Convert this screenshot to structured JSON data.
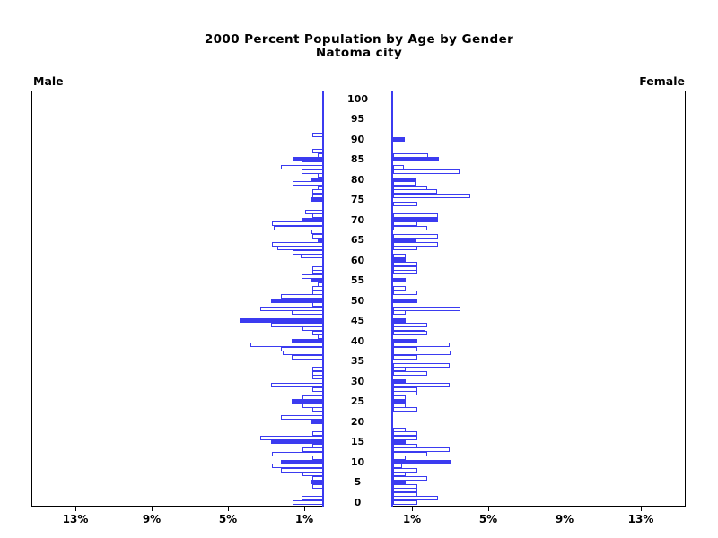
{
  "title": {
    "line1": "2000 Percent Population by Age by Gender",
    "line2": "Natoma city"
  },
  "panel_labels": {
    "male": "Male",
    "female": "Female"
  },
  "colors": {
    "bar_blue": "#3b3bf0",
    "axis_black": "#000000",
    "background": "#ffffff"
  },
  "chart_data": {
    "type": "bar",
    "variant": "population-pyramid",
    "title": "2000 Percent Population by Age by Gender",
    "subtitle": "Natoma city",
    "x_axis": {
      "unit": "percent",
      "per_side_max": 15.3,
      "ticks": [
        {
          "value": 1,
          "label": "1%"
        },
        {
          "value": 5,
          "label": "5%"
        },
        {
          "value": 9,
          "label": "9%"
        },
        {
          "value": 13,
          "label": "13%"
        }
      ]
    },
    "y_axis": {
      "unit": "age_years",
      "min": 0,
      "max": 100,
      "tick_step": 5,
      "tick_labels": [
        "0",
        "5",
        "10",
        "15",
        "20",
        "25",
        "30",
        "35",
        "40",
        "45",
        "50",
        "55",
        "60",
        "65",
        "70",
        "75",
        "80",
        "85",
        "90",
        "95",
        "100"
      ]
    },
    "bar_style_note": "filled bars mark ages divisible by 5; outlined bars are other single years of age",
    "series": [
      {
        "name": "Male",
        "side": "left",
        "bars": [
          [
            0,
            1.6,
            0
          ],
          [
            1,
            1.15,
            0
          ],
          [
            4,
            0.55,
            0
          ],
          [
            5,
            0.6,
            1
          ],
          [
            6,
            0.55,
            0
          ],
          [
            7,
            1.1,
            0
          ],
          [
            8,
            2.2,
            0
          ],
          [
            9,
            2.7,
            0
          ],
          [
            10,
            2.2,
            1
          ],
          [
            11,
            0.55,
            0
          ],
          [
            12,
            2.7,
            0
          ],
          [
            13,
            1.1,
            0
          ],
          [
            14,
            0.55,
            0
          ],
          [
            15,
            2.75,
            1
          ],
          [
            16,
            3.3,
            0
          ],
          [
            17,
            0.55,
            0
          ],
          [
            20,
            0.6,
            1
          ],
          [
            21,
            2.2,
            0
          ],
          [
            23,
            0.55,
            0
          ],
          [
            24,
            1.1,
            0
          ],
          [
            25,
            1.65,
            1
          ],
          [
            26,
            1.1,
            0
          ],
          [
            28,
            0.55,
            0
          ],
          [
            29,
            2.75,
            0
          ],
          [
            31,
            0.55,
            0
          ],
          [
            32,
            0.55,
            0
          ],
          [
            33,
            0.55,
            0
          ],
          [
            36,
            1.65,
            0
          ],
          [
            37,
            2.1,
            0
          ],
          [
            38,
            2.2,
            0
          ],
          [
            39,
            3.8,
            0
          ],
          [
            40,
            1.65,
            1
          ],
          [
            41,
            0.3,
            0
          ],
          [
            42,
            0.55,
            0
          ],
          [
            43,
            1.1,
            0
          ],
          [
            44,
            2.75,
            0
          ],
          [
            45,
            4.4,
            1
          ],
          [
            47,
            1.65,
            0
          ],
          [
            48,
            3.3,
            0
          ],
          [
            49,
            0.55,
            0
          ],
          [
            50,
            2.75,
            1
          ],
          [
            51,
            2.2,
            0
          ],
          [
            52,
            0.55,
            0
          ],
          [
            53,
            0.55,
            0
          ],
          [
            54,
            0.3,
            0
          ],
          [
            55,
            0.6,
            1
          ],
          [
            56,
            1.15,
            0
          ],
          [
            57,
            0.55,
            0
          ],
          [
            58,
            0.55,
            0
          ],
          [
            61,
            1.2,
            0
          ],
          [
            62,
            1.6,
            0
          ],
          [
            63,
            2.4,
            0
          ],
          [
            64,
            2.7,
            0
          ],
          [
            65,
            0.3,
            1
          ],
          [
            66,
            0.55,
            0
          ],
          [
            67,
            0.6,
            0
          ],
          [
            68,
            2.6,
            0
          ],
          [
            69,
            2.7,
            0
          ],
          [
            70,
            1.1,
            1
          ],
          [
            71,
            0.55,
            0
          ],
          [
            72,
            0.95,
            0
          ],
          [
            75,
            0.6,
            1
          ],
          [
            76,
            0.55,
            0
          ],
          [
            77,
            0.55,
            0
          ],
          [
            78,
            0.3,
            0
          ],
          [
            79,
            1.6,
            0
          ],
          [
            80,
            0.6,
            1
          ],
          [
            81,
            0.3,
            0
          ],
          [
            82,
            1.15,
            0
          ],
          [
            83,
            2.2,
            0
          ],
          [
            84,
            1.15,
            0
          ],
          [
            85,
            1.6,
            1
          ],
          [
            86,
            0.3,
            0
          ],
          [
            87,
            0.55,
            0
          ],
          [
            91,
            0.55,
            0
          ]
        ]
      },
      {
        "name": "Female",
        "side": "right",
        "bars": [
          [
            0,
            1.25,
            0
          ],
          [
            1,
            2.35,
            0
          ],
          [
            2,
            1.25,
            0
          ],
          [
            3,
            1.25,
            0
          ],
          [
            4,
            1.25,
            0
          ],
          [
            5,
            0.68,
            1
          ],
          [
            6,
            1.8,
            0
          ],
          [
            7,
            0.68,
            0
          ],
          [
            8,
            1.25,
            0
          ],
          [
            9,
            0.45,
            0
          ],
          [
            10,
            3.0,
            1
          ],
          [
            11,
            0.68,
            0
          ],
          [
            12,
            1.8,
            0
          ],
          [
            13,
            2.95,
            0
          ],
          [
            14,
            1.25,
            0
          ],
          [
            15,
            0.68,
            1
          ],
          [
            16,
            1.25,
            0
          ],
          [
            17,
            1.25,
            0
          ],
          [
            18,
            0.68,
            0
          ],
          [
            23,
            1.25,
            0
          ],
          [
            24,
            0.68,
            0
          ],
          [
            25,
            0.65,
            1
          ],
          [
            26,
            0.68,
            0
          ],
          [
            27,
            1.25,
            0
          ],
          [
            28,
            1.25,
            0
          ],
          [
            29,
            2.95,
            0
          ],
          [
            30,
            0.68,
            1
          ],
          [
            32,
            1.8,
            0
          ],
          [
            33,
            0.65,
            0
          ],
          [
            34,
            2.95,
            0
          ],
          [
            36,
            1.25,
            0
          ],
          [
            37,
            3.0,
            0
          ],
          [
            38,
            1.25,
            0
          ],
          [
            39,
            2.95,
            0
          ],
          [
            40,
            1.25,
            1
          ],
          [
            42,
            1.8,
            0
          ],
          [
            43,
            1.7,
            0
          ],
          [
            44,
            1.8,
            0
          ],
          [
            45,
            0.65,
            1
          ],
          [
            47,
            0.65,
            0
          ],
          [
            48,
            3.55,
            0
          ],
          [
            50,
            1.25,
            1
          ],
          [
            52,
            1.25,
            0
          ],
          [
            53,
            0.65,
            0
          ],
          [
            55,
            0.65,
            1
          ],
          [
            57,
            1.25,
            0
          ],
          [
            58,
            1.25,
            0
          ],
          [
            59,
            1.25,
            0
          ],
          [
            60,
            0.65,
            1
          ],
          [
            61,
            0.65,
            0
          ],
          [
            63,
            1.25,
            0
          ],
          [
            64,
            2.35,
            0
          ],
          [
            65,
            1.2,
            1
          ],
          [
            66,
            2.35,
            0
          ],
          [
            68,
            1.8,
            0
          ],
          [
            69,
            1.25,
            0
          ],
          [
            70,
            2.35,
            1
          ],
          [
            71,
            2.35,
            0
          ],
          [
            74,
            1.25,
            0
          ],
          [
            76,
            4.05,
            0
          ],
          [
            77,
            2.3,
            0
          ],
          [
            78,
            1.8,
            0
          ],
          [
            79,
            1.2,
            0
          ],
          [
            80,
            1.2,
            1
          ],
          [
            82,
            3.5,
            0
          ],
          [
            83,
            0.55,
            0
          ],
          [
            85,
            2.4,
            1
          ],
          [
            86,
            1.85,
            0
          ],
          [
            90,
            0.6,
            1
          ]
        ]
      }
    ]
  }
}
